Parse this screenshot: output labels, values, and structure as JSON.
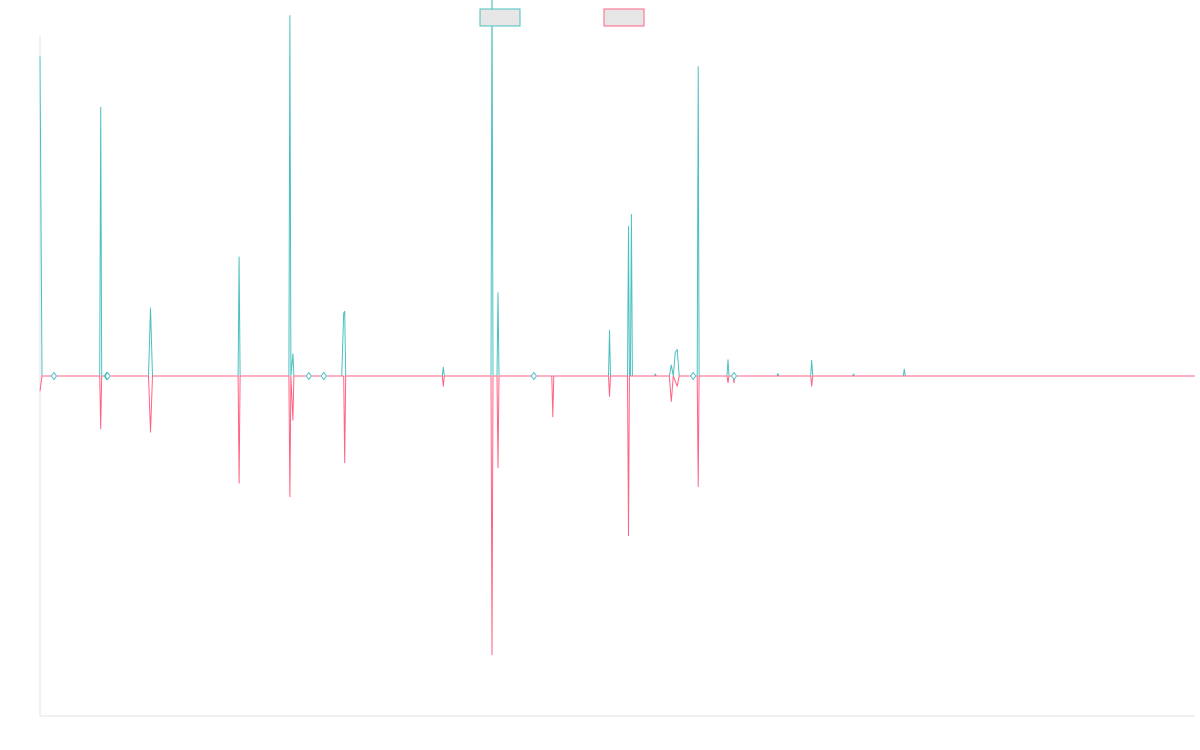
{
  "chart_data": {
    "type": "line",
    "title": "",
    "xlabel": "",
    "ylabel": "",
    "xlim": [
      0,
      1160
    ],
    "ylim": [
      -100,
      100
    ],
    "grid": false,
    "legend_position": "top-center",
    "colors": {
      "series_1": "#4bc0c0",
      "series_2": "#ff6384"
    },
    "series": [
      {
        "name": "",
        "color": "#4bc0c0",
        "points": [
          [
            0,
            94
          ],
          [
            2,
            0
          ],
          [
            14,
            0
          ],
          [
            60,
            0
          ],
          [
            61,
            79
          ],
          [
            62,
            0
          ],
          [
            67,
            0
          ],
          [
            109,
            0
          ],
          [
            111,
            20
          ],
          [
            113,
            0
          ],
          [
            199,
            0
          ],
          [
            200,
            35
          ],
          [
            201,
            0
          ],
          [
            250,
            0
          ],
          [
            251,
            106
          ],
          [
            252,
            0
          ],
          [
            254,
            6.5
          ],
          [
            255,
            0
          ],
          [
            270,
            0
          ],
          [
            285,
            0
          ],
          [
            303,
            0
          ],
          [
            305,
            18.5
          ],
          [
            306,
            19
          ],
          [
            307,
            0
          ],
          [
            404,
            0
          ],
          [
            405,
            2.6
          ],
          [
            406,
            0
          ],
          [
            453,
            0
          ],
          [
            454,
            118
          ],
          [
            455,
            0
          ],
          [
            459,
            0
          ],
          [
            460,
            24.5
          ],
          [
            461,
            0
          ],
          [
            496,
            0
          ],
          [
            516,
            0
          ],
          [
            571,
            0
          ],
          [
            572,
            13.5
          ],
          [
            573,
            0
          ],
          [
            590,
            0
          ],
          [
            591,
            44
          ],
          [
            592,
            0
          ],
          [
            593,
            0
          ],
          [
            594,
            47.5
          ],
          [
            595,
            0
          ],
          [
            617,
            0
          ],
          [
            618,
            0.6
          ],
          [
            619,
            0
          ],
          [
            632,
            0
          ],
          [
            634,
            3.2
          ],
          [
            636,
            0
          ],
          [
            638,
            7
          ],
          [
            640,
            7.8
          ],
          [
            642,
            0
          ],
          [
            656,
            0
          ],
          [
            660,
            0
          ],
          [
            661,
            91
          ],
          [
            662,
            0
          ],
          [
            690,
            0
          ],
          [
            691,
            4.8
          ],
          [
            692,
            0
          ],
          [
            697,
            0
          ],
          [
            740,
            0
          ],
          [
            741,
            0.7
          ],
          [
            742,
            0
          ],
          [
            774,
            0
          ],
          [
            775,
            4.6
          ],
          [
            776,
            0
          ],
          [
            816,
            0
          ],
          [
            817,
            0.6
          ],
          [
            818,
            0
          ],
          [
            867,
            0
          ],
          [
            868,
            2
          ],
          [
            869,
            0
          ],
          [
            1160,
            0
          ]
        ]
      },
      {
        "name": "",
        "color": "#ff6384",
        "points": [
          [
            0,
            -4.5
          ],
          [
            2,
            0
          ],
          [
            14,
            0
          ],
          [
            60,
            0
          ],
          [
            61,
            -15.5
          ],
          [
            62,
            0
          ],
          [
            67,
            0
          ],
          [
            109,
            0
          ],
          [
            111,
            -16.5
          ],
          [
            113,
            0
          ],
          [
            199,
            0
          ],
          [
            200,
            -31.5
          ],
          [
            201,
            0
          ],
          [
            250,
            0
          ],
          [
            251,
            -35.5
          ],
          [
            252,
            0
          ],
          [
            254,
            -13
          ],
          [
            255,
            0
          ],
          [
            270,
            0
          ],
          [
            285,
            0
          ],
          [
            305,
            0
          ],
          [
            306,
            -25.5
          ],
          [
            307,
            0
          ],
          [
            404,
            0
          ],
          [
            405,
            -3
          ],
          [
            406,
            0
          ],
          [
            453,
            0
          ],
          [
            454,
            -82
          ],
          [
            455,
            0
          ],
          [
            459,
            0
          ],
          [
            460,
            -27
          ],
          [
            461,
            0
          ],
          [
            496,
            0
          ],
          [
            514,
            0
          ],
          [
            515,
            -12
          ],
          [
            516,
            0
          ],
          [
            571,
            0
          ],
          [
            572,
            -6
          ],
          [
            573,
            0
          ],
          [
            590,
            0
          ],
          [
            591,
            -47
          ],
          [
            592,
            0
          ],
          [
            632,
            0
          ],
          [
            634,
            -7.5
          ],
          [
            636,
            0
          ],
          [
            640,
            -3
          ],
          [
            642,
            0
          ],
          [
            656,
            0
          ],
          [
            660,
            0
          ],
          [
            661,
            -32.5
          ],
          [
            662,
            0
          ],
          [
            690,
            0
          ],
          [
            691,
            -2
          ],
          [
            692,
            0
          ],
          [
            696,
            0
          ],
          [
            697,
            -2
          ],
          [
            698,
            0
          ],
          [
            774,
            0
          ],
          [
            775,
            -3
          ],
          [
            776,
            0
          ],
          [
            1160,
            0
          ]
        ]
      }
    ],
    "zero_markers": [
      14,
      67,
      68,
      270,
      285,
      496,
      656,
      697
    ],
    "legend": [
      {
        "label": "",
        "color": "#4bc0c0"
      },
      {
        "label": "",
        "color": "#ff6384"
      }
    ]
  }
}
